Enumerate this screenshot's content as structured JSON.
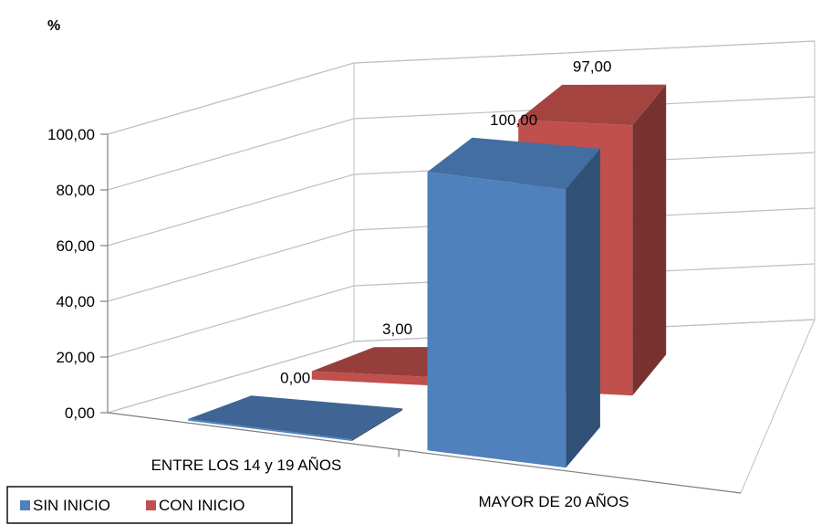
{
  "chart_data": {
    "type": "bar",
    "unit_label": "%",
    "categories": [
      "ENTRE LOS 14 y 19 AÑOS",
      "MAYOR DE 20 AÑOS"
    ],
    "series": [
      {
        "name": "SIN INICIO",
        "values": [
          0.0,
          100.0
        ],
        "value_labels": [
          "0,00",
          "100,00"
        ],
        "color": "#4F81BD"
      },
      {
        "name": "CON INICIO",
        "values": [
          3.0,
          97.0
        ],
        "value_labels": [
          "3,00",
          "97,00"
        ],
        "color": "#C0504D"
      }
    ],
    "y_ticks": [
      "0,00",
      "20,00",
      "40,00",
      "60,00",
      "80,00",
      "100,00"
    ],
    "ylim": [
      0,
      100
    ],
    "grid": true,
    "legend": "bottom-left",
    "style": "3d-clustered-column"
  }
}
